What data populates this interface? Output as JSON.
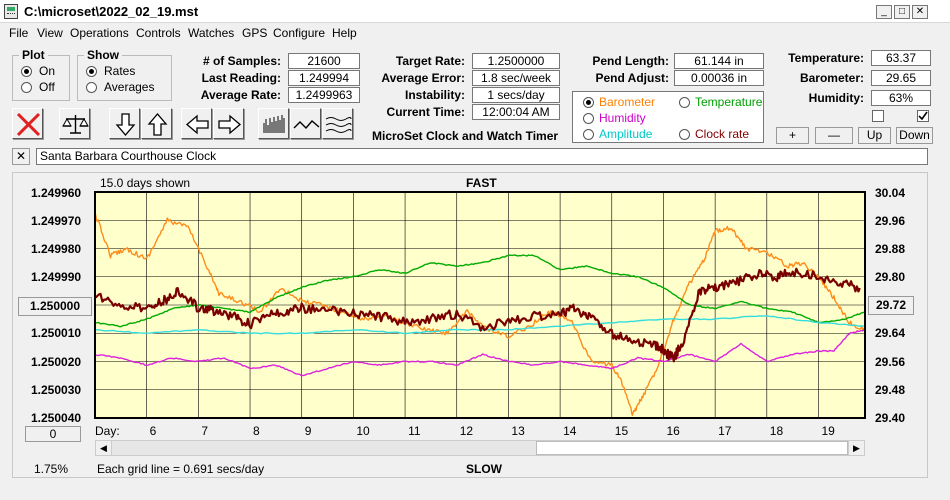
{
  "window": {
    "title": "C:\\microset\\2022_02_19.mst",
    "min_glyph": "_",
    "max_glyph": "□",
    "close_glyph": "✕"
  },
  "menu": [
    "File",
    "View",
    "Operations",
    "Controls",
    "Watches",
    "GPS",
    "Configure",
    "Help"
  ],
  "plot_group": {
    "title": "Plot",
    "options": [
      "On",
      "Off"
    ],
    "selected": "On"
  },
  "show_group": {
    "title": "Show",
    "options": [
      "Rates",
      "Averages"
    ],
    "selected": "Rates"
  },
  "stats": {
    "samples_label": "# of Samples:",
    "samples": "21600",
    "last_reading_label": "Last Reading:",
    "last_reading": "1.249994",
    "average_rate_label": "Average Rate:",
    "average_rate": "1.2499963"
  },
  "targets": {
    "target_rate_label": "Target Rate:",
    "target_rate": "1.2500000",
    "average_error_label": "Average Error:",
    "average_error": "1.8 sec/week",
    "instability_label": "Instability:",
    "instability": "1 secs/day",
    "current_time_label": "Current Time:",
    "current_time": "12:00:04 AM"
  },
  "app_name": "MicroSet Clock and Watch Timer",
  "pend": {
    "length_label": "Pend Length:",
    "length": "61.144 in",
    "adjust_label": "Pend Adjust:",
    "adjust": "0.00036 in"
  },
  "sensor_options": [
    {
      "label": "Barometer",
      "color": "#ff8000",
      "selected": true
    },
    {
      "label": "Temperature",
      "color": "#00a000",
      "selected": false
    },
    {
      "label": "Humidity",
      "color": "#cc00cc",
      "selected": false
    },
    {
      "label": "Clock rate",
      "color": "#800000",
      "selected": false
    },
    {
      "label": "Amplitude",
      "color": "#00c8c8",
      "selected": false
    }
  ],
  "environment": {
    "temperature_label": "Temperature:",
    "temperature": "63.37",
    "barometer_label": "Barometer:",
    "barometer": "29.65",
    "humidity_label": "Humidity:",
    "humidity": "63%"
  },
  "scale_buttons": {
    "plus": "+",
    "minus": "—",
    "up": "Up",
    "down": "Down"
  },
  "clock_close": "✕",
  "clock_name": "Santa Barbara Courthouse Clock",
  "chart_data": {
    "type": "line",
    "days_shown": "15.0 days shown",
    "top_label": "FAST",
    "bottom_label": "SLOW",
    "xlabel": "Day:",
    "x_ticks": [
      "6",
      "7",
      "8",
      "9",
      "10",
      "11",
      "12",
      "13",
      "14",
      "15",
      "16",
      "17",
      "18",
      "19"
    ],
    "x_range": [
      5,
      19.9
    ],
    "left_ticks": [
      "1.249960",
      "1.249970",
      "1.249980",
      "1.249990",
      "1.250010",
      "1.250020",
      "1.250030",
      "1.250040"
    ],
    "left_center_button": "1.250000",
    "left_range": [
      1.24996,
      1.25004
    ],
    "right_ticks": [
      "30.04",
      "29.96",
      "29.88",
      "29.80",
      "29.64",
      "29.56",
      "29.48",
      "29.40"
    ],
    "right_center_button": "29.72",
    "right_range": [
      29.4,
      30.04
    ],
    "grid_note": "Each grid line = 0.691 secs/day",
    "bottom_left_value": "1.75%",
    "left_offset_button": "0",
    "background": "#ffffcc",
    "series": [
      {
        "key": "barometer",
        "color": "#ff8c1a",
        "axis": "right",
        "noise": 0.6,
        "x": [
          5,
          5.3,
          5.6,
          6,
          6.4,
          6.8,
          7.2,
          7.4,
          7.8,
          8.2,
          8.6,
          9,
          9.4,
          9.8,
          10.2,
          10.6,
          11,
          11.4,
          11.8,
          12.2,
          12.6,
          13,
          13.4,
          13.8,
          14.2,
          14.6,
          15,
          15.2,
          15.4,
          15.6,
          15.9,
          16.2,
          16.5,
          16.8,
          17,
          17.3,
          17.6,
          18,
          18.4,
          18.7,
          19,
          19.3,
          19.6,
          19.9
        ],
        "y": [
          29.98,
          29.86,
          29.88,
          29.85,
          29.96,
          29.94,
          29.82,
          29.75,
          29.73,
          29.7,
          29.77,
          29.73,
          29.72,
          29.7,
          29.68,
          29.69,
          29.67,
          29.65,
          29.64,
          29.7,
          29.65,
          29.63,
          29.66,
          29.7,
          29.68,
          29.56,
          29.55,
          29.5,
          29.41,
          29.46,
          29.55,
          29.68,
          29.78,
          29.85,
          29.93,
          29.94,
          29.88,
          29.87,
          29.83,
          29.84,
          29.8,
          29.74,
          29.67,
          29.65
        ]
      },
      {
        "key": "temperature",
        "color": "#00aa00",
        "axis": "right",
        "noise": 0.15,
        "x": [
          5,
          5.5,
          6,
          6.5,
          7,
          7.5,
          8,
          8.5,
          9,
          9.5,
          10,
          10.5,
          11,
          11.5,
          12,
          12.5,
          13,
          13.5,
          14,
          14.5,
          15,
          15.5,
          16,
          16.5,
          17,
          17.5,
          18,
          18.5,
          19,
          19.5,
          19.9
        ],
        "y": [
          29.67,
          29.66,
          29.68,
          29.71,
          29.72,
          29.71,
          29.7,
          29.74,
          29.77,
          29.79,
          29.8,
          29.82,
          29.81,
          29.84,
          29.83,
          29.84,
          29.86,
          29.86,
          29.82,
          29.83,
          29.81,
          29.8,
          29.77,
          29.72,
          29.71,
          29.73,
          29.71,
          29.7,
          29.67,
          29.68,
          29.7
        ]
      },
      {
        "key": "humidity",
        "color": "#dd22dd",
        "axis": "right",
        "noise": 0.15,
        "x": [
          5,
          5.5,
          6,
          6.5,
          7,
          7.5,
          8,
          8.5,
          9,
          9.5,
          10,
          10.5,
          11,
          11.5,
          12,
          12.5,
          13,
          13.5,
          14,
          14.5,
          15,
          15.5,
          16,
          16.5,
          17,
          17.5,
          18,
          18.5,
          19,
          19.3,
          19.6,
          19.9
        ],
        "y": [
          29.58,
          29.57,
          29.55,
          29.57,
          29.56,
          29.57,
          29.54,
          29.55,
          29.52,
          29.54,
          29.56,
          29.55,
          29.56,
          29.56,
          29.55,
          29.58,
          29.56,
          29.55,
          29.56,
          29.55,
          29.54,
          29.57,
          29.56,
          29.58,
          29.56,
          29.61,
          29.56,
          29.58,
          29.59,
          29.59,
          29.64,
          29.65
        ]
      },
      {
        "key": "amplitude",
        "color": "#33dddd",
        "axis": "right",
        "noise": 0.12,
        "x": [
          5,
          6,
          7,
          8,
          9,
          10,
          11,
          12,
          13,
          14,
          15,
          16,
          17,
          18,
          19,
          19.9
        ],
        "y": [
          29.65,
          29.64,
          29.65,
          29.64,
          29.64,
          29.65,
          29.64,
          29.65,
          29.65,
          29.66,
          29.67,
          29.68,
          29.68,
          29.69,
          29.67,
          29.66
        ]
      },
      {
        "key": "clock_rate",
        "color": "#7a0000",
        "axis": "left",
        "width": 2.2,
        "noise": 1.2,
        "x": [
          5,
          5.5,
          6,
          6.3,
          6.6,
          7,
          7.3,
          7.7,
          8,
          8.3,
          8.7,
          9,
          9.5,
          10,
          10.5,
          11,
          11.5,
          12,
          12.5,
          13,
          13.5,
          14,
          14.3,
          14.6,
          15,
          15.4,
          15.8,
          16,
          16.2,
          16.4,
          16.7,
          17,
          17.4,
          17.8,
          18.2,
          18.5,
          19,
          19.4,
          19.8
        ],
        "y": [
          1.249996,
          1.250001,
          1.250001,
          1.249999,
          1.249995,
          1.250001,
          1.250002,
          1.250004,
          1.250007,
          1.250003,
          1.250002,
          1.250001,
          1.250002,
          1.250003,
          1.250004,
          1.250006,
          1.250005,
          1.250003,
          1.250008,
          1.250006,
          1.250004,
          1.250003,
          1.250001,
          1.250005,
          1.25001,
          1.250013,
          1.250014,
          1.250016,
          1.250019,
          1.250012,
          1.249995,
          1.249994,
          1.249992,
          1.249989,
          1.24999,
          1.249988,
          1.24999,
          1.249992,
          1.249994
        ]
      }
    ]
  }
}
